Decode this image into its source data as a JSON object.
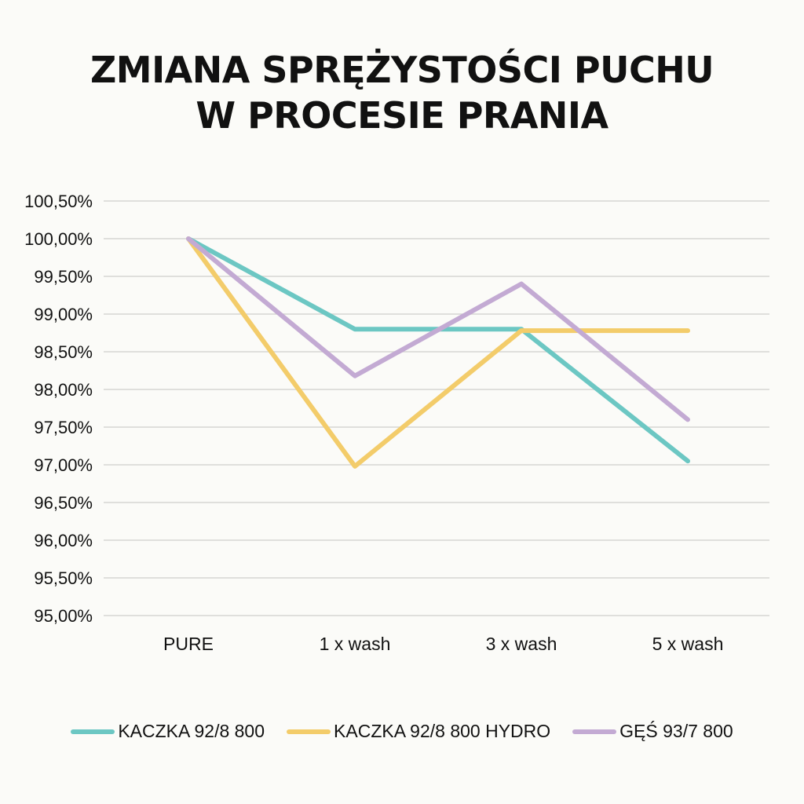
{
  "chart_data": {
    "type": "line",
    "title_lines": [
      "ZMIANA SPRĘŻYSTOŚCI PUCHU",
      "W PROCESIE PRANIA"
    ],
    "xlabel": "",
    "ylabel": "",
    "categories": [
      "PURE",
      "1 x wash",
      "3 x wash",
      "5 x wash"
    ],
    "ylim": [
      95.0,
      100.5
    ],
    "ytick_values": [
      95.0,
      95.5,
      96.0,
      96.5,
      97.0,
      97.5,
      98.0,
      98.5,
      99.0,
      99.5,
      100.0,
      100.5
    ],
    "ytick_labels": [
      "95,00%",
      "95,50%",
      "96,00%",
      "96,50%",
      "97,00%",
      "97,50%",
      "98,00%",
      "98,50%",
      "99,00%",
      "99,50%",
      "100,00%",
      "100,50%"
    ],
    "grid": true,
    "legend_position": "bottom",
    "series": [
      {
        "name": "KACZKA 92/8 800",
        "color": "#6cc7c3",
        "values": [
          100.0,
          98.8,
          98.8,
          97.05
        ]
      },
      {
        "name": "KACZKA 92/8 800 HYDRO",
        "color": "#f3cc6a",
        "values": [
          100.0,
          96.98,
          98.78,
          98.78
        ]
      },
      {
        "name": "GĘŚ 93/7 800",
        "color": "#c3aad3",
        "values": [
          100.0,
          98.18,
          99.4,
          97.6
        ]
      }
    ]
  }
}
